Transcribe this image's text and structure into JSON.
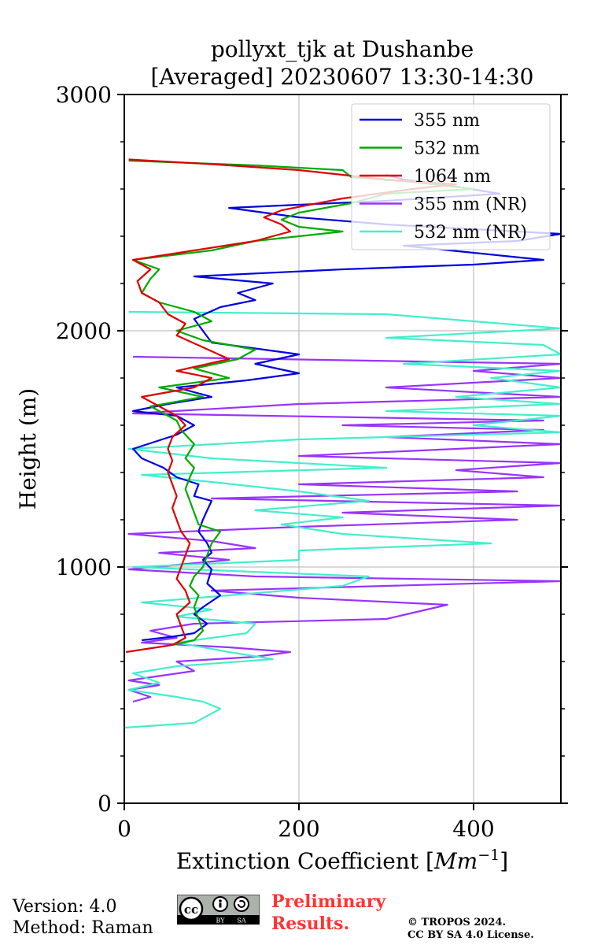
{
  "chart_data": {
    "type": "line",
    "title_line1": "pollyxt_tjk at Dushanbe",
    "title_line2": "[Averaged] 20230607 13:30-14:30",
    "xlabel": "Extinction Coefficient [",
    "xlabel_unit": "Mm",
    "xlabel_exp": "−1",
    "xlabel_end": "]",
    "ylabel": "Height (m)",
    "xlim": [
      0,
      500
    ],
    "ylim": [
      0,
      3000
    ],
    "xticks": [
      0,
      200,
      400
    ],
    "yticks": [
      0,
      1000,
      2000,
      3000
    ],
    "grid": true,
    "legend_position": "top-right",
    "series": [
      {
        "name": "355 nm",
        "color": "#0000e0",
        "points": [
          [
            20,
            690
          ],
          [
            55,
            705
          ],
          [
            80,
            720
          ],
          [
            95,
            760
          ],
          [
            80,
            800
          ],
          [
            90,
            830
          ],
          [
            110,
            880
          ],
          [
            95,
            930
          ],
          [
            100,
            990
          ],
          [
            90,
            1030
          ],
          [
            100,
            1060
          ],
          [
            95,
            1100
          ],
          [
            85,
            1150
          ],
          [
            90,
            1200
          ],
          [
            95,
            1240
          ],
          [
            100,
            1280
          ],
          [
            80,
            1300
          ],
          [
            85,
            1350
          ],
          [
            60,
            1380
          ],
          [
            45,
            1420
          ],
          [
            20,
            1460
          ],
          [
            10,
            1500
          ],
          [
            60,
            1560
          ],
          [
            80,
            1600
          ],
          [
            60,
            1640
          ],
          [
            10,
            1660
          ],
          [
            50,
            1690
          ],
          [
            100,
            1720
          ],
          [
            60,
            1760
          ],
          [
            140,
            1790
          ],
          [
            200,
            1820
          ],
          [
            150,
            1860
          ],
          [
            200,
            1900
          ],
          [
            100,
            1950
          ],
          [
            90,
            2000
          ],
          [
            80,
            2050
          ],
          [
            110,
            2100
          ],
          [
            150,
            2130
          ],
          [
            130,
            2160
          ],
          [
            170,
            2200
          ],
          [
            80,
            2230
          ],
          [
            250,
            2260
          ],
          [
            400,
            2280
          ],
          [
            480,
            2300
          ],
          [
            400,
            2330
          ],
          [
            320,
            2360
          ],
          [
            450,
            2380
          ],
          [
            500,
            2410
          ],
          [
            400,
            2430
          ],
          [
            300,
            2450
          ],
          [
            200,
            2480
          ],
          [
            120,
            2520
          ],
          [
            300,
            2550
          ],
          [
            430,
            2580
          ],
          [
            380,
            2610
          ],
          [
            320,
            2640
          ],
          [
            300,
            2660
          ]
        ]
      },
      {
        "name": "532 nm",
        "color": "#00aa00",
        "points": [
          [
            55,
            670
          ],
          [
            80,
            690
          ],
          [
            90,
            730
          ],
          [
            85,
            780
          ],
          [
            80,
            830
          ],
          [
            85,
            880
          ],
          [
            75,
            920
          ],
          [
            80,
            960
          ],
          [
            90,
            1000
          ],
          [
            95,
            1050
          ],
          [
            100,
            1100
          ],
          [
            110,
            1150
          ],
          [
            85,
            1180
          ],
          [
            80,
            1230
          ],
          [
            75,
            1280
          ],
          [
            70,
            1330
          ],
          [
            75,
            1380
          ],
          [
            80,
            1420
          ],
          [
            70,
            1460
          ],
          [
            80,
            1520
          ],
          [
            65,
            1580
          ],
          [
            60,
            1620
          ],
          [
            30,
            1680
          ],
          [
            90,
            1720
          ],
          [
            40,
            1760
          ],
          [
            120,
            1800
          ],
          [
            80,
            1840
          ],
          [
            130,
            1880
          ],
          [
            150,
            1920
          ],
          [
            90,
            1960
          ],
          [
            60,
            2000
          ],
          [
            100,
            2040
          ],
          [
            80,
            2080
          ],
          [
            40,
            2120
          ],
          [
            20,
            2160
          ],
          [
            30,
            2220
          ],
          [
            40,
            2260
          ],
          [
            10,
            2300
          ],
          [
            100,
            2340
          ],
          [
            150,
            2380
          ],
          [
            250,
            2420
          ],
          [
            200,
            2440
          ],
          [
            180,
            2470
          ],
          [
            200,
            2500
          ],
          [
            260,
            2540
          ],
          [
            300,
            2580
          ],
          [
            400,
            2600
          ],
          [
            330,
            2630
          ],
          [
            260,
            2650
          ],
          [
            250,
            2680
          ],
          [
            150,
            2700
          ],
          [
            5,
            2720
          ]
        ]
      },
      {
        "name": "1064 nm",
        "color": "#dd0000",
        "points": [
          [
            2,
            640
          ],
          [
            55,
            670
          ],
          [
            70,
            700
          ],
          [
            65,
            750
          ],
          [
            60,
            800
          ],
          [
            75,
            850
          ],
          [
            70,
            900
          ],
          [
            60,
            950
          ],
          [
            65,
            1000
          ],
          [
            70,
            1050
          ],
          [
            75,
            1100
          ],
          [
            65,
            1150
          ],
          [
            60,
            1200
          ],
          [
            55,
            1250
          ],
          [
            60,
            1300
          ],
          [
            55,
            1350
          ],
          [
            50,
            1400
          ],
          [
            55,
            1450
          ],
          [
            50,
            1500
          ],
          [
            55,
            1550
          ],
          [
            70,
            1600
          ],
          [
            60,
            1640
          ],
          [
            40,
            1680
          ],
          [
            20,
            1720
          ],
          [
            80,
            1760
          ],
          [
            100,
            1800
          ],
          [
            60,
            1830
          ],
          [
            120,
            1880
          ],
          [
            90,
            1930
          ],
          [
            60,
            1980
          ],
          [
            70,
            2030
          ],
          [
            50,
            2070
          ],
          [
            40,
            2120
          ],
          [
            20,
            2160
          ],
          [
            15,
            2210
          ],
          [
            30,
            2260
          ],
          [
            10,
            2300
          ],
          [
            80,
            2340
          ],
          [
            150,
            2380
          ],
          [
            190,
            2420
          ],
          [
            180,
            2450
          ],
          [
            160,
            2480
          ],
          [
            180,
            2510
          ],
          [
            250,
            2560
          ],
          [
            330,
            2600
          ],
          [
            380,
            2620
          ],
          [
            300,
            2640
          ],
          [
            200,
            2680
          ],
          [
            100,
            2705
          ],
          [
            5,
            2725
          ]
        ]
      },
      {
        "name": "355 nm (NR)",
        "color": "#9933ff",
        "points": [
          [
            10,
            430
          ],
          [
            30,
            450
          ],
          [
            5,
            480
          ],
          [
            40,
            500
          ],
          [
            5,
            520
          ],
          [
            80,
            560
          ],
          [
            60,
            600
          ],
          [
            150,
            620
          ],
          [
            190,
            640
          ],
          [
            120,
            660
          ],
          [
            20,
            680
          ],
          [
            60,
            700
          ],
          [
            30,
            730
          ],
          [
            80,
            760
          ],
          [
            300,
            780
          ],
          [
            370,
            840
          ],
          [
            200,
            870
          ],
          [
            100,
            900
          ],
          [
            300,
            920
          ],
          [
            500,
            940
          ],
          [
            150,
            960
          ],
          [
            5,
            990
          ],
          [
            120,
            1030
          ],
          [
            40,
            1060
          ],
          [
            150,
            1080
          ],
          [
            100,
            1110
          ],
          [
            5,
            1140
          ],
          [
            200,
            1170
          ],
          [
            450,
            1200
          ],
          [
            250,
            1230
          ],
          [
            500,
            1260
          ],
          [
            100,
            1290
          ],
          [
            450,
            1320
          ],
          [
            200,
            1350
          ],
          [
            480,
            1380
          ],
          [
            380,
            1410
          ],
          [
            500,
            1440
          ],
          [
            200,
            1470
          ],
          [
            500,
            1520
          ],
          [
            300,
            1550
          ],
          [
            480,
            1580
          ],
          [
            250,
            1600
          ],
          [
            480,
            1620
          ],
          [
            10,
            1650
          ],
          [
            200,
            1690
          ],
          [
            500,
            1720
          ],
          [
            300,
            1760
          ],
          [
            500,
            1800
          ],
          [
            400,
            1830
          ],
          [
            500,
            1860
          ],
          [
            10,
            1890
          ]
        ]
      },
      {
        "name": "532 nm (NR)",
        "color": "#44eecc",
        "points": [
          [
            0,
            320
          ],
          [
            80,
            340
          ],
          [
            110,
            400
          ],
          [
            90,
            430
          ],
          [
            60,
            450
          ],
          [
            5,
            480
          ],
          [
            40,
            510
          ],
          [
            10,
            550
          ],
          [
            60,
            580
          ],
          [
            170,
            610
          ],
          [
            120,
            640
          ],
          [
            60,
            680
          ],
          [
            140,
            720
          ],
          [
            150,
            760
          ],
          [
            60,
            790
          ],
          [
            100,
            820
          ],
          [
            20,
            850
          ],
          [
            120,
            880
          ],
          [
            250,
            920
          ],
          [
            280,
            960
          ],
          [
            10,
            1000
          ],
          [
            200,
            1030
          ],
          [
            200,
            1070
          ],
          [
            420,
            1100
          ],
          [
            250,
            1140
          ],
          [
            180,
            1180
          ],
          [
            250,
            1210
          ],
          [
            150,
            1240
          ],
          [
            280,
            1280
          ],
          [
            200,
            1320
          ],
          [
            100,
            1360
          ],
          [
            20,
            1390
          ],
          [
            300,
            1420
          ],
          [
            100,
            1460
          ],
          [
            5,
            1500
          ],
          [
            200,
            1540
          ],
          [
            500,
            1570
          ],
          [
            400,
            1600
          ],
          [
            500,
            1640
          ],
          [
            300,
            1660
          ],
          [
            500,
            1690
          ],
          [
            380,
            1720
          ],
          [
            500,
            1760
          ],
          [
            420,
            1800
          ],
          [
            500,
            1830
          ],
          [
            320,
            1860
          ],
          [
            500,
            1900
          ],
          [
            480,
            1940
          ],
          [
            300,
            1970
          ],
          [
            500,
            2010
          ],
          [
            400,
            2040
          ],
          [
            300,
            2070
          ],
          [
            5,
            2080
          ]
        ]
      }
    ]
  },
  "footer": {
    "version": "Version: 4.0",
    "method": "Method: Raman",
    "preliminary_line1": "Preliminary",
    "preliminary_line2": "Results.",
    "copyright_line1": "© TROPOS 2024.",
    "copyright_line2": "CC BY SA 4.0 License.",
    "cc_label_by": "BY",
    "cc_label_sa": "SA"
  }
}
